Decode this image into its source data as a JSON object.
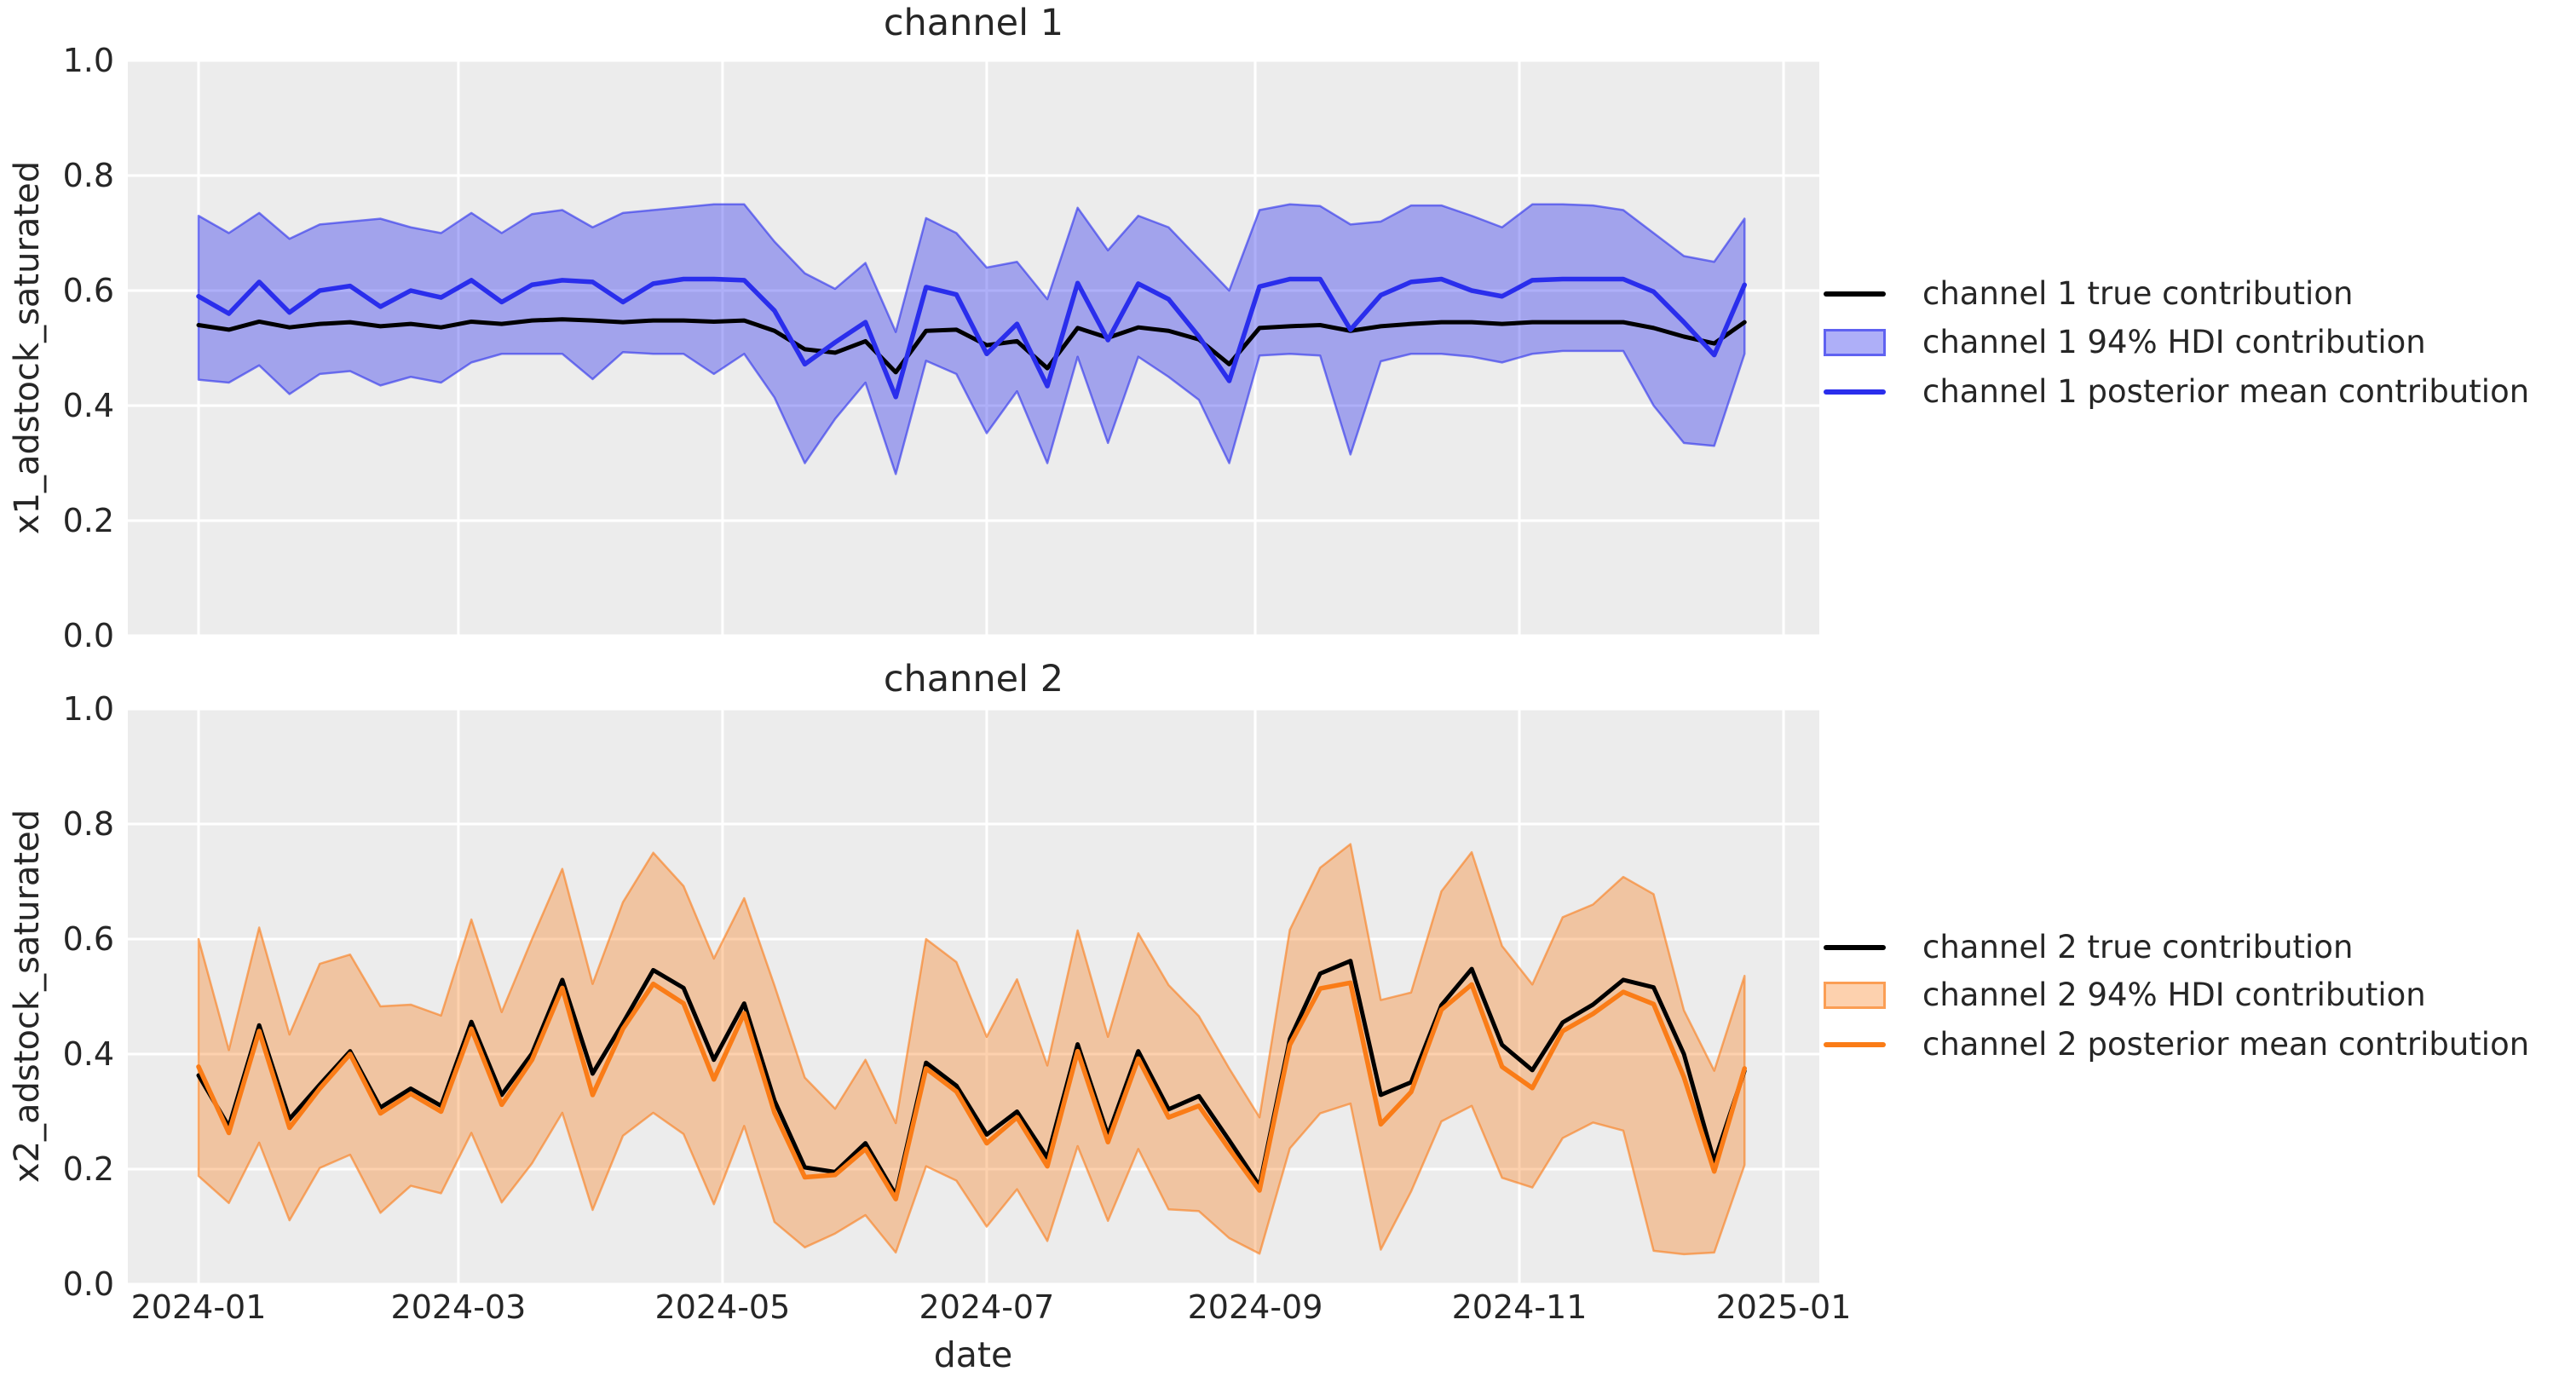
{
  "figure": {
    "background": "#ffffff",
    "plot_background": "#ececec",
    "grid_color": "#ffffff",
    "text_color": "#262626"
  },
  "xaxis": {
    "label": "date",
    "ticks": [
      {
        "label": "2024-01",
        "day": 0
      },
      {
        "label": "2024-03",
        "day": 60
      },
      {
        "label": "2024-05",
        "day": 121
      },
      {
        "label": "2024-07",
        "day": 182
      },
      {
        "label": "2024-09",
        "day": 244
      },
      {
        "label": "2024-11",
        "day": 305
      },
      {
        "label": "2025-01",
        "day": 366
      }
    ]
  },
  "chart_data": [
    {
      "type": "line",
      "title": "channel 1",
      "xlabel": "",
      "ylabel": "x1_adstock_saturated",
      "ylim": [
        0.0,
        1.0
      ],
      "ytick_labels": [
        "1.0",
        "0.8",
        "0.6",
        "0.4",
        "0.2",
        "0.0"
      ],
      "ytick_values": [
        1.0,
        0.8,
        0.6,
        0.4,
        0.2,
        0.0
      ],
      "grid": true,
      "legend_position": "center right, outside axes",
      "x_dates": [
        "2024-01-01",
        "2024-01-08",
        "2024-01-15",
        "2024-01-22",
        "2024-01-29",
        "2024-02-05",
        "2024-02-12",
        "2024-02-19",
        "2024-02-26",
        "2024-03-04",
        "2024-03-11",
        "2024-03-18",
        "2024-03-25",
        "2024-04-01",
        "2024-04-08",
        "2024-04-15",
        "2024-04-22",
        "2024-04-29",
        "2024-05-06",
        "2024-05-13",
        "2024-05-20",
        "2024-05-27",
        "2024-06-03",
        "2024-06-10",
        "2024-06-17",
        "2024-06-24",
        "2024-07-01",
        "2024-07-08",
        "2024-07-15",
        "2024-07-22",
        "2024-07-29",
        "2024-08-05",
        "2024-08-12",
        "2024-08-19",
        "2024-08-26",
        "2024-09-02",
        "2024-09-09",
        "2024-09-16",
        "2024-09-23",
        "2024-09-30",
        "2024-10-07",
        "2024-10-14",
        "2024-10-21",
        "2024-10-28",
        "2024-11-04",
        "2024-11-11",
        "2024-11-18",
        "2024-11-25",
        "2024-12-02",
        "2024-12-09",
        "2024-12-16",
        "2024-12-23"
      ],
      "series": [
        {
          "name": "channel 1 true contribution",
          "color": "#000000",
          "width": 5,
          "values": [
            0.54,
            0.532,
            0.546,
            0.536,
            0.542,
            0.545,
            0.538,
            0.542,
            0.536,
            0.546,
            0.542,
            0.548,
            0.55,
            0.548,
            0.545,
            0.548,
            0.548,
            0.546,
            0.548,
            0.53,
            0.498,
            0.492,
            0.512,
            0.458,
            0.53,
            0.532,
            0.505,
            0.512,
            0.465,
            0.535,
            0.518,
            0.536,
            0.53,
            0.515,
            0.472,
            0.535,
            0.538,
            0.54,
            0.53,
            0.538,
            0.542,
            0.545,
            0.545,
            0.542,
            0.545,
            0.545,
            0.545,
            0.545,
            0.535,
            0.52,
            0.508,
            0.545
          ]
        },
        {
          "name": "channel 1 posterior mean contribution",
          "color": "#2a2eec",
          "width": 5.5,
          "values": [
            0.59,
            0.56,
            0.615,
            0.562,
            0.6,
            0.608,
            0.572,
            0.6,
            0.588,
            0.618,
            0.58,
            0.61,
            0.618,
            0.615,
            0.58,
            0.612,
            0.62,
            0.62,
            0.618,
            0.565,
            0.472,
            0.51,
            0.545,
            0.415,
            0.606,
            0.593,
            0.49,
            0.542,
            0.434,
            0.613,
            0.514,
            0.612,
            0.585,
            0.52,
            0.443,
            0.607,
            0.62,
            0.62,
            0.532,
            0.592,
            0.615,
            0.62,
            0.6,
            0.59,
            0.618,
            0.62,
            0.62,
            0.62,
            0.598,
            0.545,
            0.488,
            0.61
          ]
        }
      ],
      "band": {
        "name": "channel 1 94% HDI contribution",
        "color": "#2a2eec",
        "fill": "rgba(42,46,236,0.38)",
        "edge": "rgba(42,46,236,0.6)",
        "lower": [
          0.445,
          0.44,
          0.47,
          0.42,
          0.455,
          0.46,
          0.435,
          0.45,
          0.44,
          0.475,
          0.49,
          0.49,
          0.49,
          0.446,
          0.493,
          0.49,
          0.49,
          0.455,
          0.49,
          0.414,
          0.3,
          0.377,
          0.44,
          0.281,
          0.478,
          0.455,
          0.352,
          0.425,
          0.3,
          0.485,
          0.335,
          0.485,
          0.45,
          0.41,
          0.3,
          0.487,
          0.49,
          0.487,
          0.315,
          0.477,
          0.49,
          0.49,
          0.485,
          0.475,
          0.49,
          0.495,
          0.495,
          0.495,
          0.4,
          0.335,
          0.33,
          0.49
        ],
        "upper": [
          0.73,
          0.7,
          0.735,
          0.69,
          0.715,
          0.72,
          0.725,
          0.71,
          0.7,
          0.735,
          0.7,
          0.733,
          0.74,
          0.71,
          0.735,
          0.74,
          0.745,
          0.75,
          0.75,
          0.685,
          0.63,
          0.603,
          0.648,
          0.528,
          0.726,
          0.7,
          0.64,
          0.65,
          0.585,
          0.744,
          0.67,
          0.73,
          0.71,
          0.655,
          0.6,
          0.74,
          0.75,
          0.747,
          0.715,
          0.72,
          0.748,
          0.748,
          0.73,
          0.71,
          0.75,
          0.75,
          0.748,
          0.74,
          0.7,
          0.66,
          0.65,
          0.725
        ]
      }
    },
    {
      "type": "line",
      "title": "channel 2",
      "xlabel": "date",
      "ylabel": "x2_adstock_saturated",
      "ylim": [
        0.0,
        1.0
      ],
      "ytick_labels": [
        "1.0",
        "0.8",
        "0.6",
        "0.4",
        "0.2",
        "0.0"
      ],
      "ytick_values": [
        1.0,
        0.8,
        0.6,
        0.4,
        0.2,
        0.0
      ],
      "grid": true,
      "legend_position": "center right, outside axes",
      "x_dates": [
        "2024-01-01",
        "2024-01-08",
        "2024-01-15",
        "2024-01-22",
        "2024-01-29",
        "2024-02-05",
        "2024-02-12",
        "2024-02-19",
        "2024-02-26",
        "2024-03-04",
        "2024-03-11",
        "2024-03-18",
        "2024-03-25",
        "2024-04-01",
        "2024-04-08",
        "2024-04-15",
        "2024-04-22",
        "2024-04-29",
        "2024-05-06",
        "2024-05-13",
        "2024-05-20",
        "2024-05-27",
        "2024-06-03",
        "2024-06-10",
        "2024-06-17",
        "2024-06-24",
        "2024-07-01",
        "2024-07-08",
        "2024-07-15",
        "2024-07-22",
        "2024-07-29",
        "2024-08-05",
        "2024-08-12",
        "2024-08-19",
        "2024-08-26",
        "2024-09-02",
        "2024-09-09",
        "2024-09-16",
        "2024-09-23",
        "2024-09-30",
        "2024-10-07",
        "2024-10-14",
        "2024-10-21",
        "2024-10-28",
        "2024-11-04",
        "2024-11-11",
        "2024-11-18",
        "2024-11-25",
        "2024-12-02",
        "2024-12-09",
        "2024-12-16",
        "2024-12-23"
      ],
      "series": [
        {
          "name": "channel 2 true contribution",
          "color": "#000000",
          "width": 5,
          "values": [
            0.363,
            0.274,
            0.45,
            0.287,
            0.347,
            0.405,
            0.307,
            0.34,
            0.31,
            0.456,
            0.329,
            0.401,
            0.529,
            0.366,
            0.454,
            0.546,
            0.515,
            0.39,
            0.488,
            0.319,
            0.203,
            0.195,
            0.245,
            0.155,
            0.385,
            0.345,
            0.26,
            0.3,
            0.22,
            0.417,
            0.259,
            0.405,
            0.304,
            0.327,
            0.25,
            0.171,
            0.426,
            0.54,
            0.562,
            0.329,
            0.351,
            0.485,
            0.548,
            0.416,
            0.372,
            0.455,
            0.486,
            0.529,
            0.516,
            0.4,
            0.213,
            0.371
          ]
        },
        {
          "name": "channel 2 posterior mean contribution",
          "color": "#fa7c17",
          "width": 5.5,
          "values": [
            0.378,
            0.263,
            0.44,
            0.272,
            0.34,
            0.4,
            0.297,
            0.331,
            0.3,
            0.444,
            0.312,
            0.39,
            0.515,
            0.329,
            0.444,
            0.522,
            0.488,
            0.356,
            0.471,
            0.298,
            0.186,
            0.19,
            0.235,
            0.148,
            0.375,
            0.335,
            0.245,
            0.29,
            0.205,
            0.405,
            0.247,
            0.392,
            0.29,
            0.31,
            0.235,
            0.163,
            0.416,
            0.514,
            0.524,
            0.278,
            0.334,
            0.477,
            0.521,
            0.378,
            0.341,
            0.44,
            0.47,
            0.508,
            0.487,
            0.36,
            0.196,
            0.375
          ]
        }
      ],
      "band": {
        "name": "channel 2 94% HDI contribution",
        "color": "#fa7c17",
        "fill": "rgba(250,124,23,0.35)",
        "edge": "rgba(250,124,23,0.6)",
        "lower": [
          0.188,
          0.141,
          0.246,
          0.111,
          0.202,
          0.225,
          0.124,
          0.171,
          0.158,
          0.263,
          0.142,
          0.21,
          0.298,
          0.129,
          0.258,
          0.298,
          0.261,
          0.139,
          0.275,
          0.108,
          0.064,
          0.088,
          0.12,
          0.055,
          0.205,
          0.18,
          0.1,
          0.165,
          0.075,
          0.24,
          0.11,
          0.235,
          0.13,
          0.127,
          0.08,
          0.053,
          0.236,
          0.297,
          0.314,
          0.06,
          0.161,
          0.283,
          0.31,
          0.185,
          0.168,
          0.254,
          0.281,
          0.267,
          0.058,
          0.052,
          0.055,
          0.207
        ],
        "upper": [
          0.6,
          0.407,
          0.62,
          0.434,
          0.557,
          0.573,
          0.483,
          0.486,
          0.467,
          0.634,
          0.473,
          0.6,
          0.722,
          0.522,
          0.664,
          0.75,
          0.692,
          0.566,
          0.671,
          0.519,
          0.359,
          0.305,
          0.39,
          0.28,
          0.6,
          0.56,
          0.43,
          0.53,
          0.38,
          0.615,
          0.43,
          0.61,
          0.52,
          0.466,
          0.375,
          0.29,
          0.616,
          0.724,
          0.765,
          0.494,
          0.507,
          0.683,
          0.751,
          0.588,
          0.521,
          0.638,
          0.66,
          0.708,
          0.678,
          0.476,
          0.371,
          0.536
        ]
      }
    }
  ]
}
